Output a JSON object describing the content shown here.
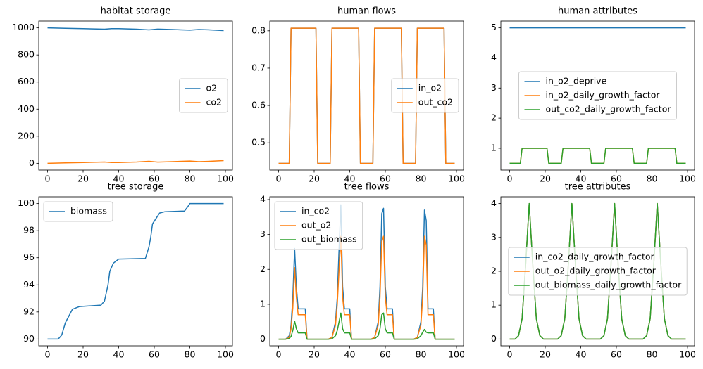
{
  "chart_data": [
    {
      "type": "line",
      "title": "habitat storage",
      "legend": "center right",
      "x": [
        0,
        10,
        20,
        32,
        36,
        40,
        50,
        57,
        62,
        70,
        80,
        85,
        90,
        99
      ],
      "series": [
        {
          "name": "o2",
          "color": "#1f77b4",
          "values": [
            1000,
            997,
            994,
            990,
            994,
            994,
            990,
            985,
            991,
            988,
            983,
            988,
            986,
            980
          ]
        },
        {
          "name": "co2",
          "color": "#ff7f0e",
          "values": [
            0,
            3,
            6,
            10,
            6,
            6,
            10,
            15,
            9,
            12,
            17,
            12,
            14,
            20
          ]
        }
      ],
      "xlim": [
        -4.95,
        103.95
      ],
      "xticks": [
        0,
        20,
        40,
        60,
        80,
        100
      ],
      "ylim": [
        -50,
        1050
      ],
      "yticks": [
        0,
        200,
        400,
        600,
        800,
        1000
      ]
    },
    {
      "type": "line",
      "title": "human flows",
      "legend": "center right",
      "x": [
        0,
        6,
        7,
        21,
        22,
        29,
        30,
        45,
        46,
        53,
        54,
        69,
        70,
        77,
        78,
        93,
        94,
        99
      ],
      "series": [
        {
          "name": "in_o2",
          "color": "#1f77b4",
          "values": [
            0.445,
            0.445,
            0.807,
            0.807,
            0.445,
            0.445,
            0.807,
            0.807,
            0.445,
            0.445,
            0.807,
            0.807,
            0.445,
            0.445,
            0.807,
            0.807,
            0.445,
            0.445
          ]
        },
        {
          "name": "out_co2",
          "color": "#ff7f0e",
          "values": [
            0.445,
            0.445,
            0.807,
            0.807,
            0.445,
            0.445,
            0.807,
            0.807,
            0.445,
            0.445,
            0.807,
            0.807,
            0.445,
            0.445,
            0.807,
            0.807,
            0.445,
            0.445
          ]
        }
      ],
      "xlim": [
        -4.95,
        103.95
      ],
      "xticks": [
        0,
        20,
        40,
        60,
        80,
        100
      ],
      "ylim": [
        0.427,
        0.826
      ],
      "yticks": [
        0.5,
        0.6,
        0.7,
        0.8
      ]
    },
    {
      "type": "line",
      "title": "human attributes",
      "legend": "center",
      "x": [
        0,
        6,
        7,
        21,
        22,
        29,
        30,
        45,
        46,
        53,
        54,
        69,
        70,
        77,
        78,
        93,
        94,
        99
      ],
      "series": [
        {
          "name": "in_o2_deprive",
          "color": "#1f77b4",
          "values": [
            5,
            5,
            5,
            5,
            5,
            5,
            5,
            5,
            5,
            5,
            5,
            5,
            5,
            5,
            5,
            5,
            5,
            5
          ]
        },
        {
          "name": "in_o2_daily_growth_factor",
          "color": "#ff7f0e",
          "values": [
            0.5,
            0.5,
            1,
            1,
            0.5,
            0.5,
            1,
            1,
            0.5,
            0.5,
            1,
            1,
            0.5,
            0.5,
            1,
            1,
            0.5,
            0.5
          ]
        },
        {
          "name": "out_co2_daily_growth_factor",
          "color": "#2ca02c",
          "values": [
            0.5,
            0.5,
            1,
            1,
            0.5,
            0.5,
            1,
            1,
            0.5,
            0.5,
            1,
            1,
            0.5,
            0.5,
            1,
            1,
            0.5,
            0.5
          ]
        }
      ],
      "xlim": [
        -4.95,
        103.95
      ],
      "xticks": [
        0,
        20,
        40,
        60,
        80,
        100
      ],
      "ylim": [
        0.275,
        5.225
      ],
      "yticks": [
        1,
        2,
        3,
        4,
        5
      ]
    },
    {
      "type": "line",
      "title": "tree storage",
      "legend": "upper left",
      "x": [
        0,
        6,
        8,
        10,
        12,
        14,
        18,
        30,
        32,
        34,
        35,
        37,
        40,
        55,
        57,
        58,
        59,
        61,
        63,
        66,
        77,
        79,
        80,
        99
      ],
      "series": [
        {
          "name": "biomass",
          "color": "#1f77b4",
          "values": [
            90,
            90,
            90.3,
            91.2,
            91.7,
            92.2,
            92.4,
            92.5,
            92.8,
            94.0,
            95.0,
            95.6,
            95.9,
            95.95,
            96.8,
            97.5,
            98.5,
            98.9,
            99.3,
            99.4,
            99.45,
            99.8,
            100,
            100
          ]
        }
      ],
      "xlim": [
        -4.95,
        103.95
      ],
      "xticks": [
        0,
        20,
        40,
        60,
        80,
        100
      ],
      "ylim": [
        89.5,
        100.5
      ],
      "yticks": [
        90,
        92,
        94,
        96,
        98,
        100
      ]
    },
    {
      "type": "line",
      "title": "tree flows",
      "legend": "upper left",
      "x": [
        0,
        4,
        6,
        7,
        8,
        9,
        10,
        11,
        15,
        16,
        20,
        28,
        30,
        32,
        33,
        34,
        35,
        36,
        37,
        40,
        41,
        44,
        52,
        54,
        56,
        57,
        58,
        59,
        60,
        61,
        64,
        65,
        68,
        76,
        78,
        80,
        81,
        82,
        83,
        84,
        87,
        88,
        92,
        99
      ],
      "series": [
        {
          "name": "in_co2",
          "color": "#1f77b4",
          "values": [
            0,
            0,
            0.1,
            0.4,
            1.2,
            2.6,
            1.5,
            0.87,
            0.87,
            0,
            0,
            0,
            0.05,
            0.5,
            1.2,
            2.6,
            3.85,
            1.5,
            0.87,
            0.87,
            0,
            0,
            0,
            0.05,
            0.5,
            1.5,
            3.6,
            3.75,
            1.5,
            0.87,
            0.87,
            0,
            0,
            0,
            0.05,
            0.5,
            1.5,
            3.7,
            3.4,
            0.87,
            0.87,
            0,
            0,
            0
          ]
        },
        {
          "name": "out_o2",
          "color": "#ff7f0e",
          "values": [
            0,
            0,
            0.05,
            0.3,
            0.9,
            2.05,
            1.2,
            0.7,
            0.7,
            0,
            0,
            0,
            0.05,
            0.4,
            1.0,
            2.0,
            2.95,
            1.2,
            0.7,
            0.7,
            0,
            0,
            0,
            0.05,
            0.4,
            1.2,
            2.8,
            2.95,
            1.2,
            0.7,
            0.7,
            0,
            0,
            0,
            0.05,
            0.4,
            1.2,
            2.95,
            2.7,
            0.7,
            0.7,
            0,
            0,
            0
          ]
        },
        {
          "name": "out_biomass",
          "color": "#2ca02c",
          "values": [
            0,
            0,
            0.02,
            0.08,
            0.25,
            0.52,
            0.3,
            0.18,
            0.18,
            0,
            0,
            0,
            0.01,
            0.1,
            0.25,
            0.5,
            0.75,
            0.3,
            0.18,
            0.18,
            0,
            0,
            0,
            0.01,
            0.1,
            0.3,
            0.7,
            0.75,
            0.3,
            0.18,
            0.18,
            0,
            0,
            0,
            0.01,
            0.1,
            0.2,
            0.28,
            0.2,
            0.18,
            0.18,
            0,
            0,
            0
          ]
        }
      ],
      "xlim": [
        -4.95,
        103.95
      ],
      "xticks": [
        0,
        20,
        40,
        60,
        80,
        100
      ],
      "ylim": [
        -0.19,
        4.08
      ],
      "yticks": [
        0,
        1,
        2,
        3,
        4
      ]
    },
    {
      "type": "line",
      "title": "tree attributes",
      "legend": "center",
      "x": [
        0,
        3,
        5,
        7,
        9,
        11,
        13,
        15,
        17,
        19,
        23,
        27,
        29,
        31,
        33,
        35,
        37,
        39,
        41,
        43,
        47,
        51,
        53,
        55,
        57,
        59,
        61,
        63,
        65,
        67,
        71,
        75,
        77,
        79,
        81,
        83,
        85,
        87,
        89,
        91,
        95,
        99
      ],
      "series": [
        {
          "name": "in_co2_daily_growth_factor",
          "color": "#1f77b4",
          "values": [
            0,
            0,
            0.1,
            0.6,
            2.2,
            4.0,
            2.2,
            0.6,
            0.1,
            0,
            0,
            0,
            0.1,
            0.6,
            2.2,
            4.0,
            2.2,
            0.6,
            0.1,
            0,
            0,
            0,
            0.1,
            0.6,
            2.2,
            4.0,
            2.2,
            0.6,
            0.1,
            0,
            0,
            0,
            0.1,
            0.6,
            2.2,
            4.0,
            2.2,
            0.6,
            0.1,
            0,
            0,
            0
          ]
        },
        {
          "name": "out_o2_daily_growth_factor",
          "color": "#ff7f0e",
          "values": [
            0,
            0,
            0.1,
            0.6,
            2.2,
            4.0,
            2.2,
            0.6,
            0.1,
            0,
            0,
            0,
            0.1,
            0.6,
            2.2,
            4.0,
            2.2,
            0.6,
            0.1,
            0,
            0,
            0,
            0.1,
            0.6,
            2.2,
            4.0,
            2.2,
            0.6,
            0.1,
            0,
            0,
            0,
            0.1,
            0.6,
            2.2,
            4.0,
            2.2,
            0.6,
            0.1,
            0,
            0,
            0
          ]
        },
        {
          "name": "out_biomass_daily_growth_factor",
          "color": "#2ca02c",
          "values": [
            0,
            0,
            0.1,
            0.6,
            2.2,
            4.0,
            2.2,
            0.6,
            0.1,
            0,
            0,
            0,
            0.1,
            0.6,
            2.2,
            4.0,
            2.2,
            0.6,
            0.1,
            0,
            0,
            0,
            0.1,
            0.6,
            2.2,
            4.0,
            2.2,
            0.6,
            0.1,
            0,
            0,
            0,
            0.1,
            0.6,
            2.2,
            4.0,
            2.2,
            0.6,
            0.1,
            0,
            0,
            0
          ]
        }
      ],
      "xlim": [
        -4.95,
        103.95
      ],
      "xticks": [
        0,
        20,
        40,
        60,
        80,
        100
      ],
      "ylim": [
        -0.2,
        4.2
      ],
      "yticks": [
        0,
        1,
        2,
        3,
        4
      ]
    }
  ]
}
